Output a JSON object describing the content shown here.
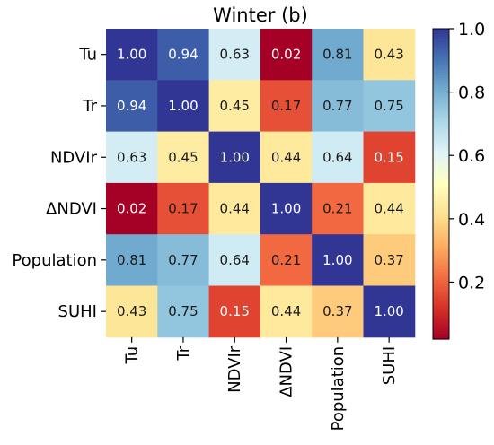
{
  "chart_data": {
    "type": "heatmap",
    "title": "Winter (b)",
    "rows": [
      "Tu",
      "Tr",
      "NDVIr",
      "ΔNDVI",
      "Population",
      "SUHI"
    ],
    "columns": [
      "Tu",
      "Tr",
      "NDVIr",
      "ΔNDVI",
      "Population",
      "SUHI"
    ],
    "values": [
      [
        1.0,
        0.94,
        0.63,
        0.02,
        0.81,
        0.43
      ],
      [
        0.94,
        1.0,
        0.45,
        0.17,
        0.77,
        0.75
      ],
      [
        0.63,
        0.45,
        1.0,
        0.44,
        0.64,
        0.15
      ],
      [
        0.02,
        0.17,
        0.44,
        1.0,
        0.21,
        0.44
      ],
      [
        0.81,
        0.77,
        0.64,
        0.21,
        1.0,
        0.37
      ],
      [
        0.43,
        0.75,
        0.15,
        0.44,
        0.37,
        1.0
      ]
    ],
    "value_format": "0.00",
    "colormap": "RdYlBu",
    "color_range": [
      0.02,
      1.0
    ],
    "colorbar_ticks": [
      "0.2",
      "0.4",
      "0.6",
      "0.8",
      "1.0"
    ],
    "colorbar_tick_values": [
      0.2,
      0.4,
      0.6,
      0.8,
      1.0
    ]
  }
}
